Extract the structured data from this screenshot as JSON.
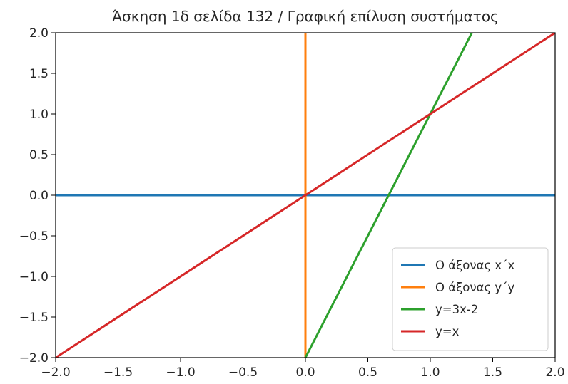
{
  "chart_data": {
    "type": "line",
    "title": "Άσκηση 1δ σελίδα 132 / Γραφική επίλυση συστήματος",
    "xlabel": "",
    "ylabel": "",
    "xlim": [
      -2.0,
      2.0
    ],
    "ylim": [
      -2.0,
      2.0
    ],
    "xticks": [
      "−2.0",
      "−1.5",
      "−1.0",
      "−0.5",
      "0.0",
      "0.5",
      "1.0",
      "1.5",
      "2.0"
    ],
    "yticks": [
      "2.0",
      "1.5",
      "1.0",
      "0.5",
      "0.0",
      "−0.5",
      "−1.0",
      "−1.5",
      "−2.0"
    ],
    "grid": false,
    "legend_position": "lower-right",
    "series": [
      {
        "name": "Ο άξονας x΄x",
        "color": "#1f77b4",
        "x": [
          -2.0,
          2.0
        ],
        "y": [
          0.0,
          0.0
        ]
      },
      {
        "name": "Ο άξονας y΄y",
        "color": "#ff7f0e",
        "x": [
          0.0,
          0.0
        ],
        "y": [
          -2.0,
          2.0
        ]
      },
      {
        "name": "y=3x-2",
        "color": "#2ca02c",
        "x": [
          0.0,
          1.3333
        ],
        "y": [
          -2.0,
          2.0
        ]
      },
      {
        "name": "y=x",
        "color": "#d62728",
        "x": [
          -2.0,
          2.0
        ],
        "y": [
          -2.0,
          2.0
        ]
      }
    ]
  }
}
